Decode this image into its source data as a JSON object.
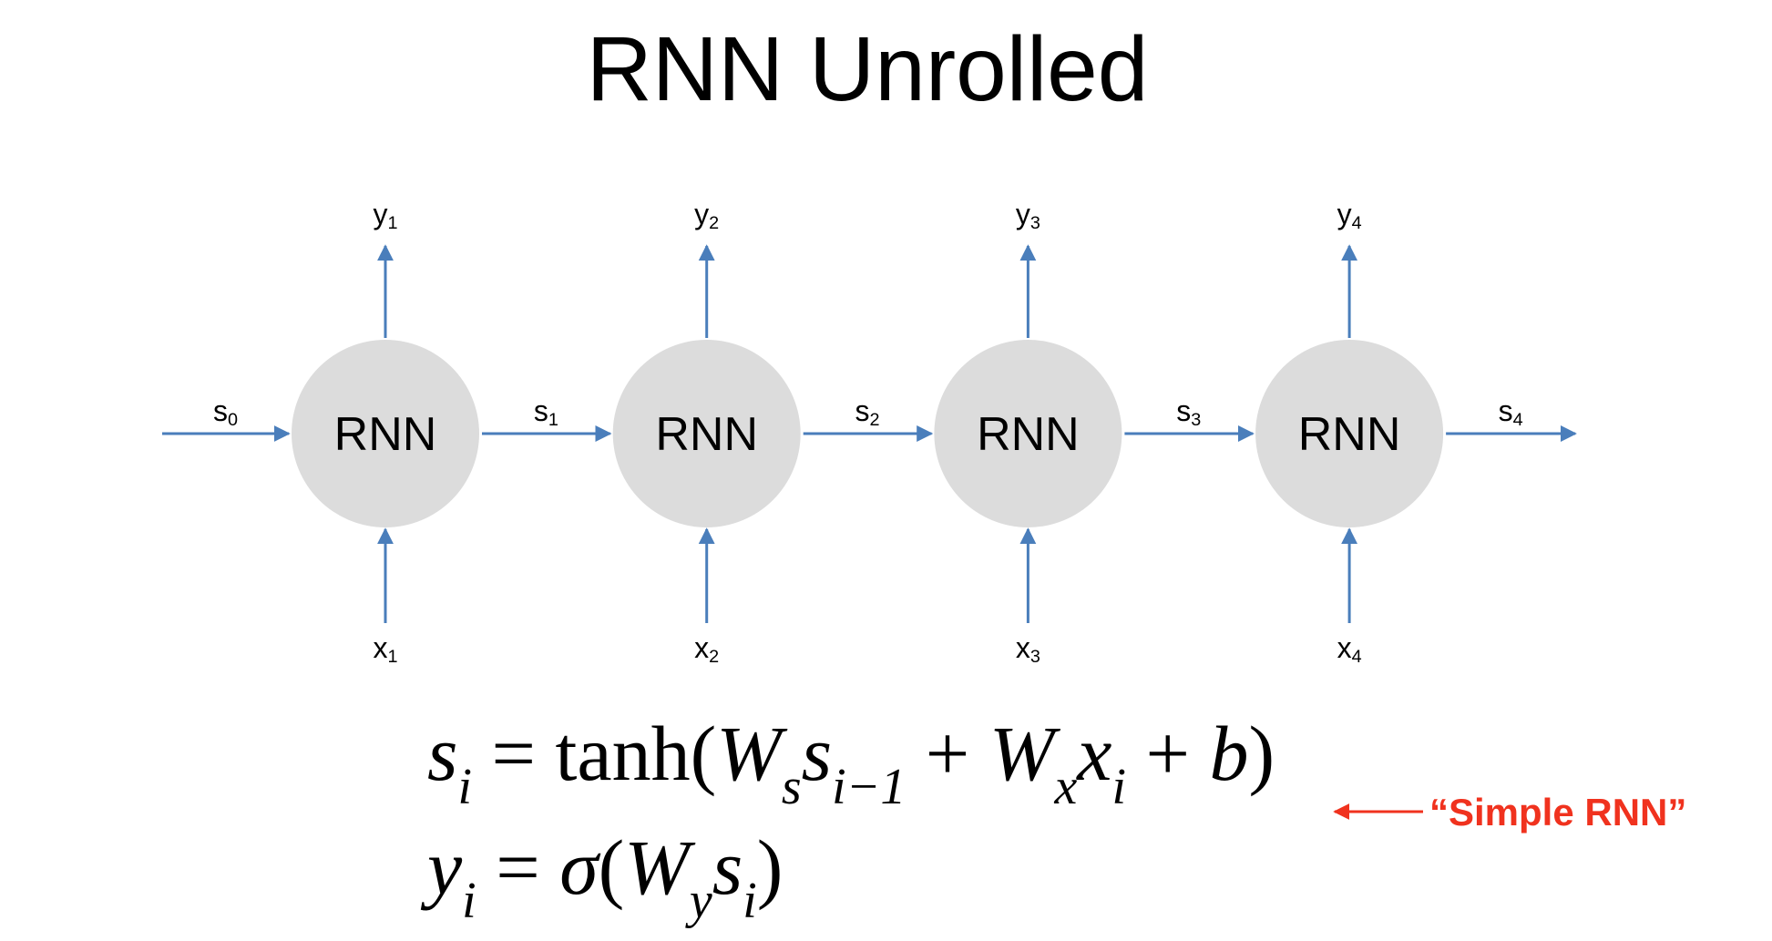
{
  "title": "RNN Unrolled",
  "nodes": [
    {
      "label": "RNN",
      "input": {
        "text": "x",
        "sub": "1"
      },
      "output": {
        "text": "y",
        "sub": "1"
      }
    },
    {
      "label": "RNN",
      "input": {
        "text": "x",
        "sub": "2"
      },
      "output": {
        "text": "y",
        "sub": "2"
      }
    },
    {
      "label": "RNN",
      "input": {
        "text": "x",
        "sub": "3"
      },
      "output": {
        "text": "y",
        "sub": "3"
      }
    },
    {
      "label": "RNN",
      "input": {
        "text": "x",
        "sub": "4"
      },
      "output": {
        "text": "y",
        "sub": "4"
      }
    }
  ],
  "states": [
    {
      "text": "s",
      "sub": "0"
    },
    {
      "text": "s",
      "sub": "1"
    },
    {
      "text": "s",
      "sub": "2"
    },
    {
      "text": "s",
      "sub": "3"
    },
    {
      "text": "s",
      "sub": "4"
    }
  ],
  "equations": [
    [
      {
        "text": "s",
        "sub": "i"
      },
      {
        "text": " = tanh("
      },
      {
        "text": "W",
        "sub": "s"
      },
      {
        "text": "s",
        "sub": "i−1"
      },
      {
        "text": " + "
      },
      {
        "text": "W",
        "sub": "x"
      },
      {
        "text": "x",
        "sub": "i"
      },
      {
        "text": " + "
      },
      {
        "text": "b"
      },
      {
        "text": ")"
      }
    ],
    [
      {
        "text": "y",
        "sub": "i"
      },
      {
        "text": " = "
      },
      {
        "text": "σ"
      },
      {
        "text": "("
      },
      {
        "text": "W",
        "sub": "y"
      },
      {
        "text": "s",
        "sub": "i"
      },
      {
        "text": ")"
      }
    ]
  ],
  "annotation": "“Simple RNN”"
}
